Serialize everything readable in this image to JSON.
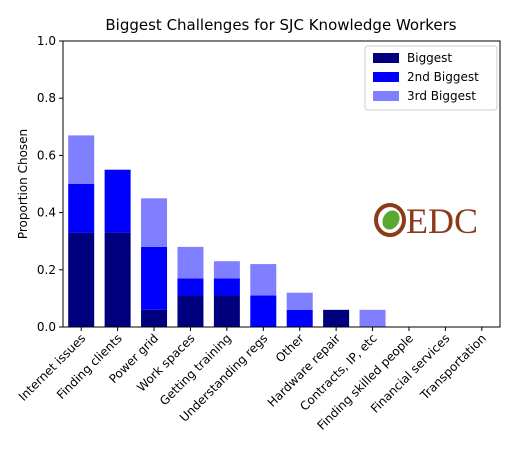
{
  "chart_data": {
    "type": "stacked_bar",
    "title": "Biggest Challenges for SJC Knowledge Workers",
    "y_label": "Proportion Chosen",
    "categories": [
      "Internet issues",
      "Finding clients",
      "Power grid",
      "Work spaces",
      "Getting training",
      "Understanding regs",
      "Other",
      "Hardware repair",
      "Contracts, IP, etc",
      "Finding skilled people",
      "Financial services",
      "Transportation"
    ],
    "series": [
      {
        "name": "Biggest",
        "color": "#00007f",
        "values": [
          0.33,
          0.33,
          0.06,
          0.11,
          0.11,
          0,
          0,
          0.06,
          0,
          0,
          0,
          0
        ]
      },
      {
        "name": "2nd Biggest",
        "color": "#0000ff",
        "values": [
          0.17,
          0.22,
          0.22,
          0.06,
          0.06,
          0.11,
          0.06,
          0,
          0,
          0,
          0,
          0
        ]
      },
      {
        "name": "3rd Biggest",
        "color": "#7f7fff",
        "values": [
          0.17,
          0,
          0.17,
          0.11,
          0.06,
          0.11,
          0.06,
          0,
          0.06,
          0,
          0,
          0
        ]
      }
    ],
    "ylim": [
      0,
      1
    ],
    "yticks": [
      {
        "value": 0,
        "label": "0.0"
      },
      0.2,
      0.4,
      0.6,
      0.8,
      {
        "value": 1,
        "label": "1.0"
      }
    ],
    "legend": "upper right",
    "grid": false
  },
  "logo": "EDC"
}
